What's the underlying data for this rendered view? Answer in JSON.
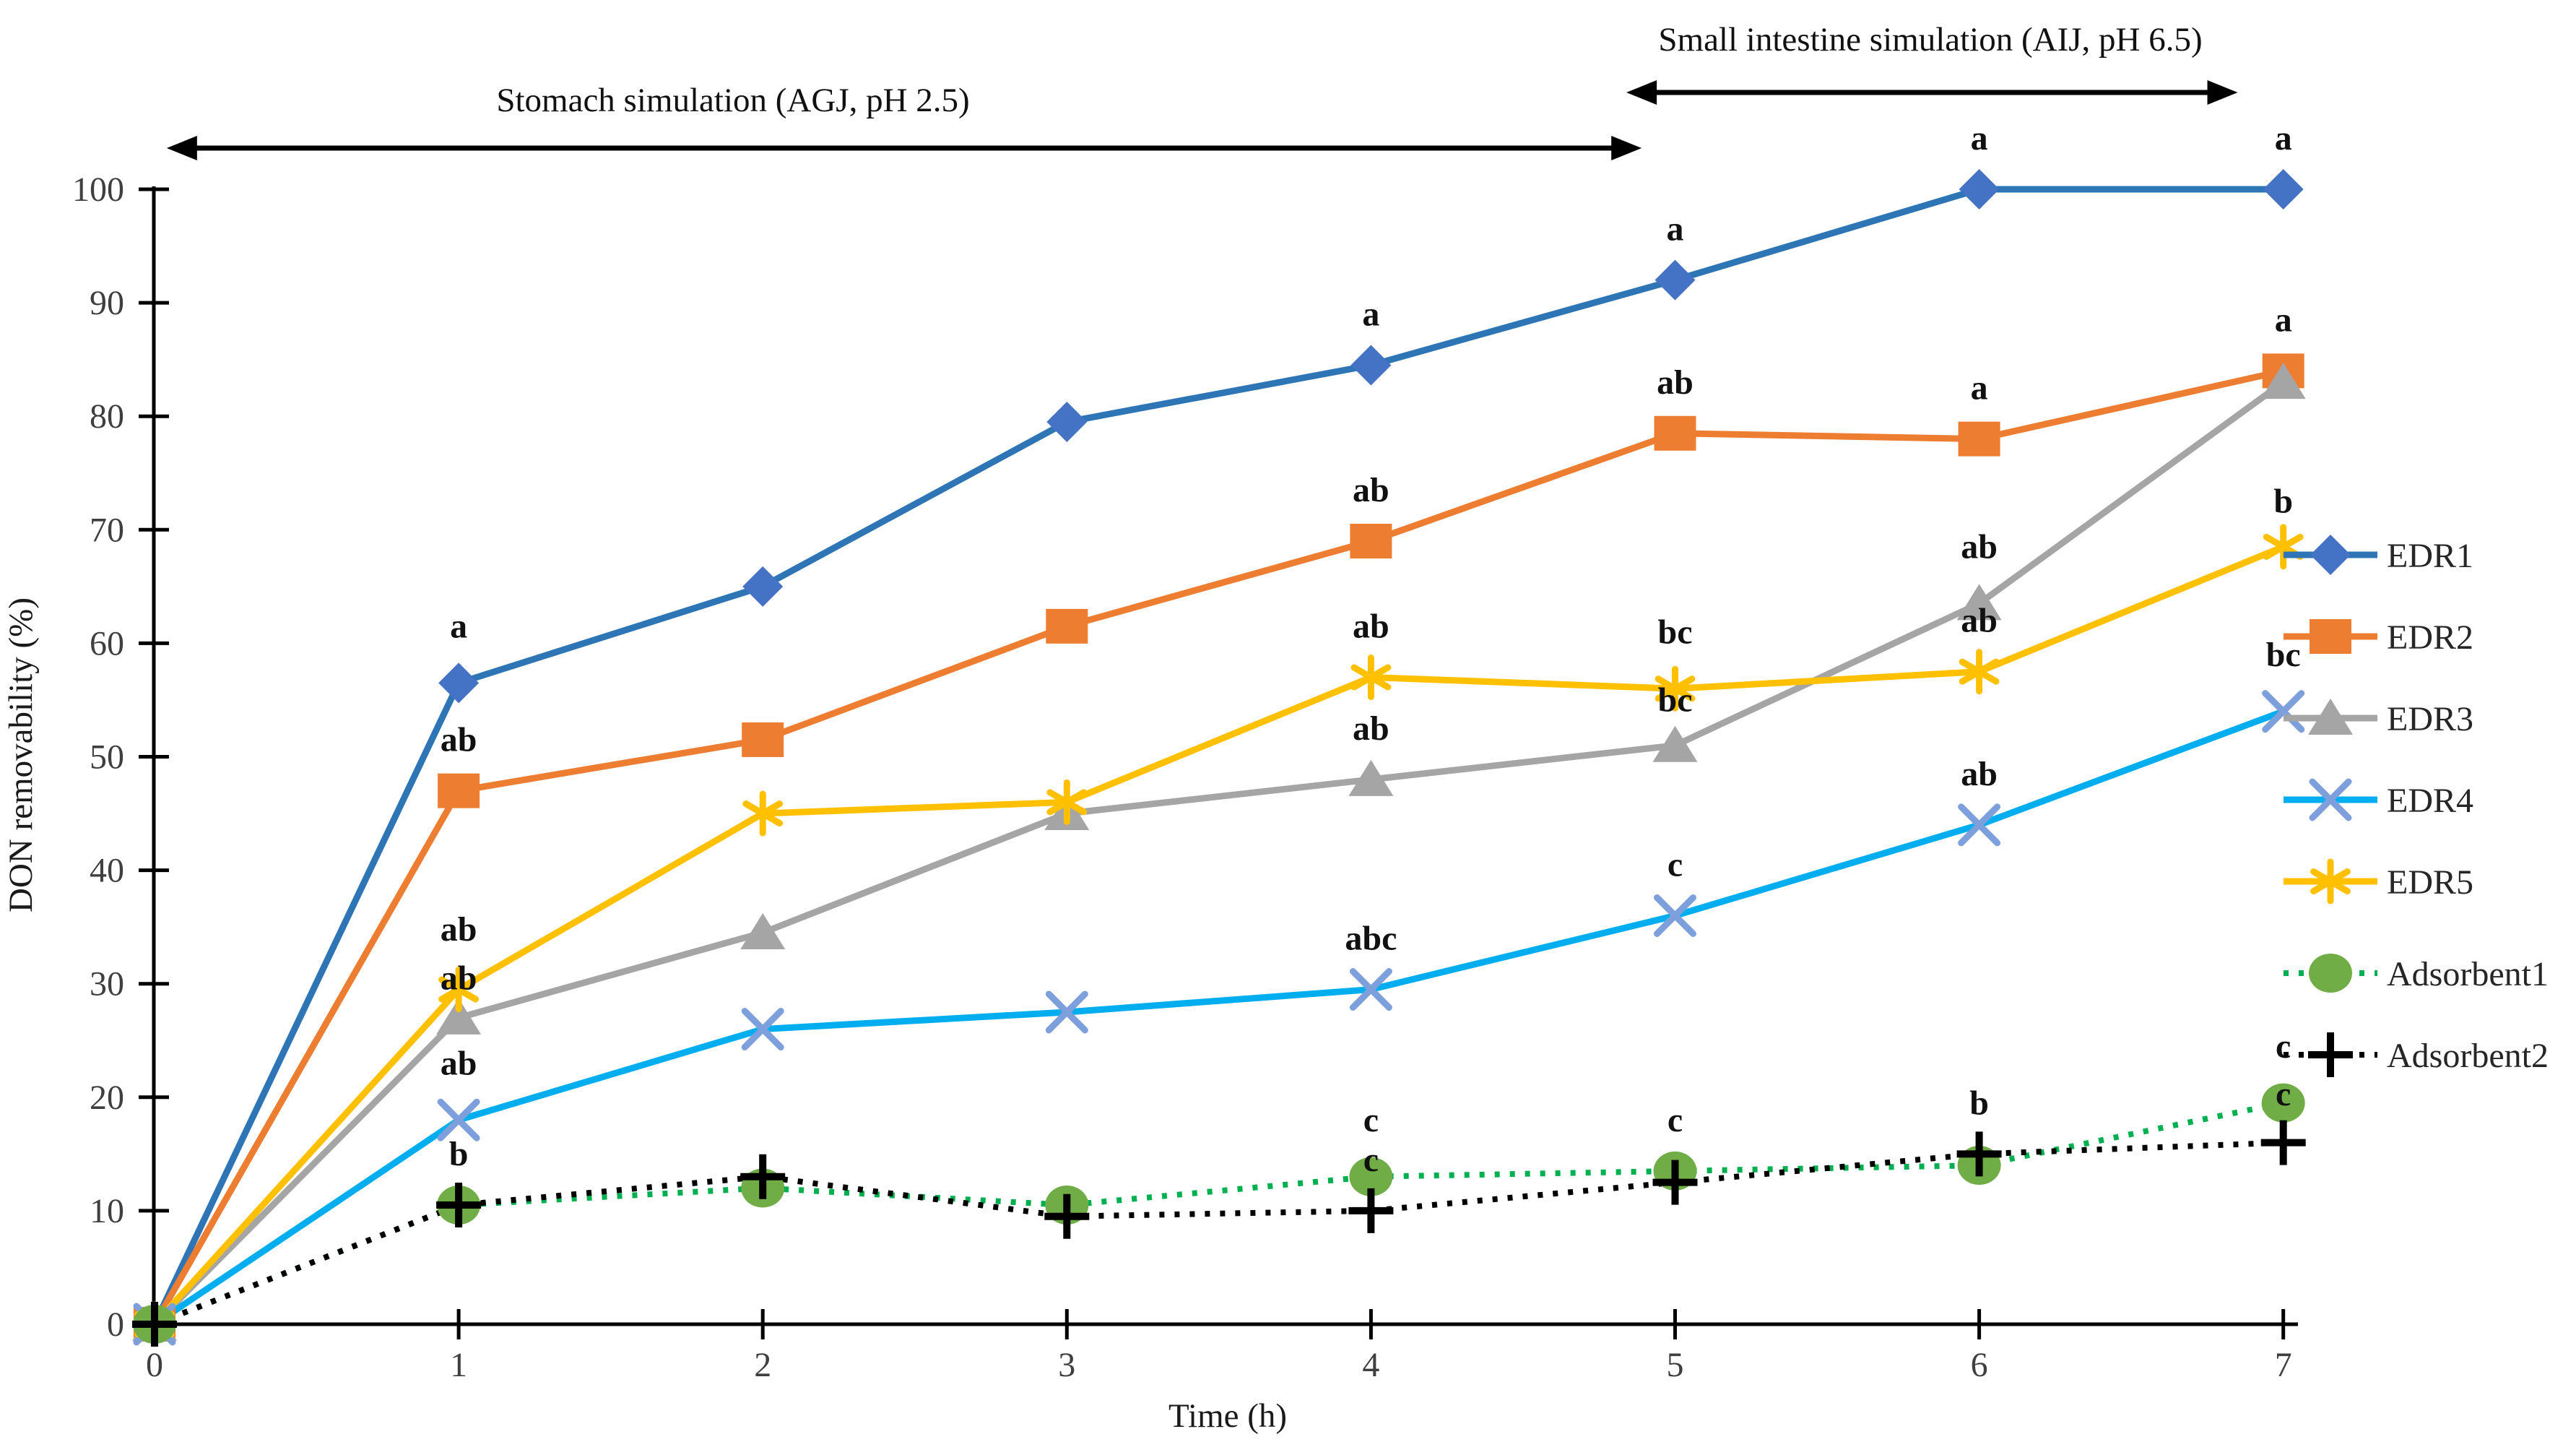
{
  "figure": {
    "phases": [
      {
        "label": "Stomach simulation (AGJ, pH 2.5)",
        "t_start": 0.04,
        "t_end": 4.89
      },
      {
        "label": "Small intestine simulation (AIJ, pH 6.5)",
        "t_start": 4.84,
        "t_end": 6.85
      }
    ]
  },
  "chart_data": {
    "type": "line",
    "x": [
      0,
      1,
      2,
      3,
      4,
      5,
      6,
      7
    ],
    "xlabel": "Time (h)",
    "ylabel": "DON removability (%)",
    "xlim": [
      0,
      7
    ],
    "ylim": [
      0,
      100
    ],
    "y_ticks": [
      0,
      10,
      20,
      30,
      40,
      50,
      60,
      70,
      80,
      90,
      100
    ],
    "x_ticks": [
      0,
      1,
      2,
      3,
      4,
      5,
      6,
      7
    ],
    "grid": false,
    "legend_position": "right",
    "series": [
      {
        "name": "EDR1",
        "marker": "diamond",
        "line_style": "solid",
        "color": "#2E75B6",
        "marker_color": "#4472C4",
        "values": [
          0,
          56.5,
          65,
          79.5,
          84.5,
          92,
          100,
          100
        ]
      },
      {
        "name": "EDR2",
        "marker": "square",
        "line_style": "solid",
        "color": "#ED7D31",
        "marker_color": "#ED7D31",
        "values": [
          0,
          47,
          51.5,
          61.5,
          69,
          78.5,
          78,
          84
        ]
      },
      {
        "name": "EDR3",
        "marker": "triangle",
        "line_style": "solid",
        "color": "#A5A5A5",
        "marker_color": "#A5A5A5",
        "values": [
          0,
          27,
          34.5,
          45,
          48,
          51,
          63.5,
          83
        ]
      },
      {
        "name": "EDR4",
        "marker": "x",
        "line_style": "solid",
        "color": "#00AEEF",
        "marker_color": "#7DA0DC",
        "values": [
          0,
          18,
          26,
          27.5,
          29.5,
          36,
          44,
          54
        ]
      },
      {
        "name": "EDR5",
        "marker": "asterisk",
        "line_style": "solid",
        "color": "#FFC000",
        "marker_color": "#FFC000",
        "values": [
          0,
          29.5,
          45,
          46,
          57,
          56,
          57.5,
          68.5
        ]
      },
      {
        "name": "Adsorbent1",
        "marker": "circle",
        "line_style": "dotted",
        "color": "#00B050",
        "marker_color": "#70AD47",
        "values": [
          0,
          10.5,
          12,
          10.5,
          13,
          13.5,
          14,
          19.5
        ]
      },
      {
        "name": "Adsorbent2",
        "marker": "plus",
        "line_style": "dotted",
        "color": "#000000",
        "marker_color": "#000000",
        "values": [
          0,
          10.5,
          13,
          9.5,
          10,
          12.5,
          15,
          16
        ]
      }
    ],
    "point_annotations": [
      {
        "t": 1,
        "v": 60.5,
        "text": "a"
      },
      {
        "t": 1,
        "v": 50.5,
        "text": "ab"
      },
      {
        "t": 1,
        "v": 33.8,
        "text": "ab"
      },
      {
        "t": 1,
        "v": 29.5,
        "text": "ab"
      },
      {
        "t": 1,
        "v": 22.0,
        "text": "ab"
      },
      {
        "t": 1,
        "v": 14.0,
        "text": "b"
      },
      {
        "t": 4,
        "v": 88.0,
        "text": "a"
      },
      {
        "t": 4,
        "v": 72.5,
        "text": "ab"
      },
      {
        "t": 4,
        "v": 60.5,
        "text": "ab"
      },
      {
        "t": 4,
        "v": 51.5,
        "text": "ab"
      },
      {
        "t": 4,
        "v": 33.0,
        "text": "abc"
      },
      {
        "t": 4,
        "v": 17.0,
        "text": "c"
      },
      {
        "t": 4,
        "v": 13.5,
        "text": "c"
      },
      {
        "t": 5,
        "v": 95.5,
        "text": "a"
      },
      {
        "t": 5,
        "v": 82.0,
        "text": "ab"
      },
      {
        "t": 5,
        "v": 60.0,
        "text": "bc"
      },
      {
        "t": 5,
        "v": 54.0,
        "text": "bc"
      },
      {
        "t": 5,
        "v": 39.5,
        "text": "c"
      },
      {
        "t": 5,
        "v": 17.0,
        "text": "c"
      },
      {
        "t": 6,
        "v": 103.5,
        "text": "a"
      },
      {
        "t": 6,
        "v": 81.5,
        "text": "a"
      },
      {
        "t": 6,
        "v": 67.5,
        "text": "ab"
      },
      {
        "t": 6,
        "v": 61.0,
        "text": "ab"
      },
      {
        "t": 6,
        "v": 47.5,
        "text": "ab"
      },
      {
        "t": 6,
        "v": 18.5,
        "text": "b"
      },
      {
        "t": 7,
        "v": 103.5,
        "text": "a"
      },
      {
        "t": 7,
        "v": 87.5,
        "text": "a"
      },
      {
        "t": 7,
        "v": 71.5,
        "text": "b"
      },
      {
        "t": 7,
        "v": 58.0,
        "text": "bc"
      },
      {
        "t": 7,
        "v": 23.5,
        "text": "c"
      },
      {
        "t": 7,
        "v": 19.3,
        "text": "c"
      }
    ]
  }
}
